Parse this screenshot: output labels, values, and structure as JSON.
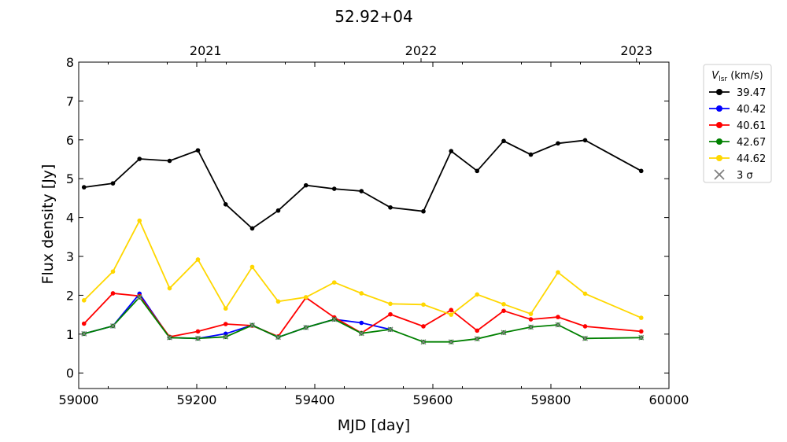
{
  "chart_data": {
    "type": "line",
    "title": "52.92+04",
    "xlabel": "MJD [day]",
    "ylabel": "Flux density [Jy]",
    "xlim": [
      59000,
      60000
    ],
    "ylim": [
      -0.4,
      8
    ],
    "x_ticks": [
      59000,
      59200,
      59400,
      59600,
      59800,
      60000
    ],
    "y_ticks": [
      0,
      1,
      2,
      3,
      4,
      5,
      6,
      7,
      8
    ],
    "top_axis": {
      "labels": [
        "2021",
        "2022",
        "2023"
      ],
      "ticks": [
        59215,
        59580,
        59945
      ]
    },
    "grid": false,
    "legend": {
      "placement": "outside-right",
      "title_main": "V",
      "title_sub": "lsr",
      "title_units": " (km/s)",
      "sigma_marker_label": "3 σ",
      "sigma_marker_color": "#808080"
    },
    "series": [
      {
        "name": "39.47",
        "color": "#000000",
        "x": [
          59009,
          59058,
          59103,
          59154,
          59202,
          59249,
          59294,
          59338,
          59385,
          59433,
          59479,
          59528,
          59584,
          59631,
          59675,
          59720,
          59766,
          59812,
          59858,
          59953
        ],
        "y": [
          4.78,
          4.88,
          5.51,
          5.46,
          5.73,
          4.34,
          3.72,
          4.18,
          4.83,
          4.74,
          4.68,
          4.26,
          4.16,
          5.71,
          5.2,
          5.97,
          5.62,
          5.91,
          5.99,
          5.2
        ]
      },
      {
        "name": "40.42",
        "color": "#0000ff",
        "x": [
          59009,
          59058,
          59103,
          59154,
          59202,
          59249,
          59294,
          59338,
          59385,
          59433,
          59479,
          59528
        ],
        "y": [
          1.01,
          1.21,
          2.04,
          0.91,
          0.89,
          1.01,
          1.23,
          0.92,
          1.17,
          1.38,
          1.29,
          1.12
        ]
      },
      {
        "name": "40.61",
        "color": "#ff0000",
        "x": [
          59009,
          59058,
          59103,
          59154,
          59202,
          59249,
          59294,
          59338,
          59385,
          59433,
          59479,
          59528,
          59584,
          59631,
          59675,
          59720,
          59766,
          59812,
          59858,
          59953
        ],
        "y": [
          1.27,
          2.05,
          1.98,
          0.93,
          1.07,
          1.26,
          1.22,
          0.94,
          1.94,
          1.43,
          1.03,
          1.51,
          1.2,
          1.62,
          1.09,
          1.6,
          1.38,
          1.44,
          1.2,
          1.07
        ]
      },
      {
        "name": "42.67",
        "color": "#008000",
        "x": [
          59009,
          59058,
          59103,
          59154,
          59202,
          59249,
          59294,
          59338,
          59385,
          59433,
          59479,
          59528,
          59584,
          59631,
          59675,
          59720,
          59766,
          59812,
          59858,
          59953
        ],
        "y": [
          1.01,
          1.21,
          1.95,
          0.91,
          0.89,
          0.93,
          1.23,
          0.92,
          1.17,
          1.38,
          1.02,
          1.12,
          0.8,
          0.8,
          0.88,
          1.04,
          1.18,
          1.24,
          0.89,
          0.91
        ],
        "sigma_x": [
          59009,
          59058,
          59103,
          59154,
          59202,
          59249,
          59294,
          59338,
          59385,
          59433,
          59479,
          59528,
          59584,
          59631,
          59675,
          59720,
          59766,
          59812,
          59858,
          59953
        ],
        "sigma_y": [
          1.01,
          1.21,
          1.95,
          0.91,
          0.89,
          0.93,
          1.23,
          0.92,
          1.17,
          1.38,
          1.02,
          1.12,
          0.8,
          0.8,
          0.88,
          1.04,
          1.18,
          1.24,
          0.89,
          0.91
        ]
      },
      {
        "name": "44.62",
        "color": "#ffd700",
        "x": [
          59009,
          59058,
          59103,
          59154,
          59202,
          59249,
          59294,
          59338,
          59385,
          59433,
          59479,
          59528,
          59584,
          59631,
          59675,
          59720,
          59766,
          59812,
          59858,
          59953
        ],
        "y": [
          1.87,
          2.61,
          3.92,
          2.18,
          2.92,
          1.66,
          2.73,
          1.84,
          1.95,
          2.33,
          2.05,
          1.78,
          1.76,
          1.5,
          2.02,
          1.77,
          1.52,
          2.59,
          2.04,
          1.42
        ]
      }
    ]
  }
}
